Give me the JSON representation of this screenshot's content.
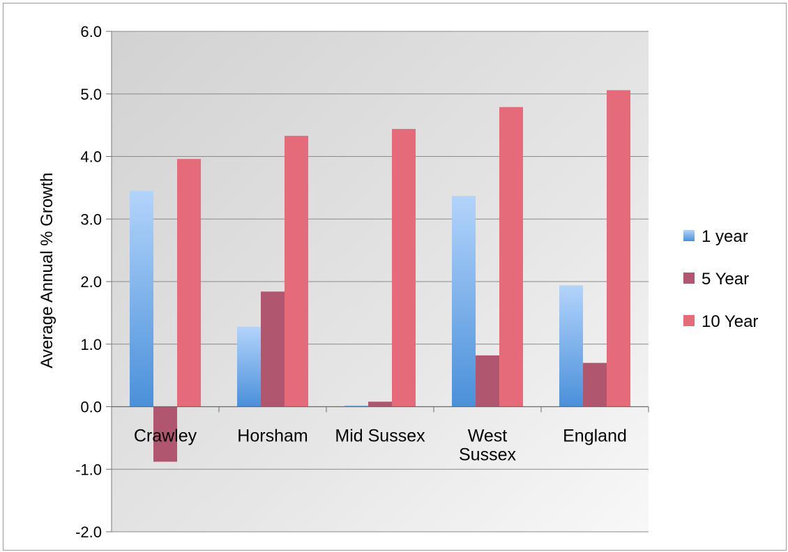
{
  "chart_data": {
    "type": "bar",
    "title": "",
    "xlabel": "",
    "ylabel": "Average Annual % Growth",
    "ylim": [
      -2.0,
      6.0
    ],
    "yticks": [
      "-2.0",
      "-1.0",
      "0.0",
      "1.0",
      "2.0",
      "3.0",
      "4.0",
      "5.0",
      "6.0"
    ],
    "categories": [
      [
        "Crawley"
      ],
      [
        "Horsham"
      ],
      [
        "Mid Sussex"
      ],
      [
        "West",
        "Sussex"
      ],
      [
        "England"
      ]
    ],
    "series": [
      {
        "name": "1 year",
        "values": [
          3.45,
          1.28,
          0.02,
          3.37,
          1.94
        ]
      },
      {
        "name": "5 Year",
        "values": [
          -0.88,
          1.84,
          0.08,
          0.82,
          0.7
        ]
      },
      {
        "name": "10 Year",
        "values": [
          3.96,
          4.33,
          4.44,
          4.79,
          5.06
        ]
      }
    ],
    "grid": true,
    "legend_position": "right",
    "colors": {
      "one_year_top": "#b3d4fb",
      "one_year_bottom": "#4a90da",
      "five_year": "#b0566e",
      "ten_year": "#e66b7a",
      "plot_bg": "#dcdcdc",
      "gridline": "#8a8a8a"
    }
  }
}
